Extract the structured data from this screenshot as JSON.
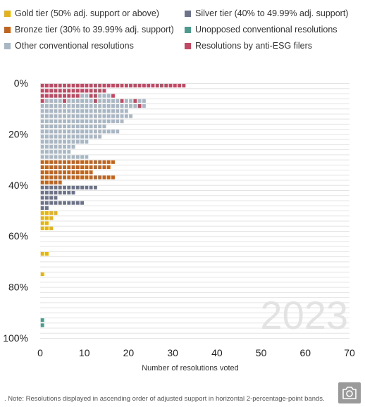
{
  "legend": [
    {
      "label": "Gold tier (50% adj. support or above)",
      "color": "#e3b21c",
      "icon": "square-swatch-icon"
    },
    {
      "label": "Silver tier (40% to 49.99% adj. support)",
      "color": "#6d7389",
      "icon": "square-swatch-icon"
    },
    {
      "label": "Bronze tier (30% to 39.99% adj. support)",
      "color": "#c0641f",
      "icon": "square-swatch-icon"
    },
    {
      "label": "Unopposed conventional resolutions",
      "color": "#4e9a8c",
      "icon": "square-swatch-icon"
    },
    {
      "label": "Other conventional resolutions",
      "color": "#a9b6c3",
      "icon": "square-swatch-icon"
    },
    {
      "label": "Resolutions by anti-ESG filers",
      "color": "#c04a64",
      "icon": "square-swatch-icon"
    }
  ],
  "chart_data": {
    "type": "scatter",
    "subtype": "unit-dot-stack",
    "watermark": "2023",
    "xlabel": "Number of resolutions voted",
    "ylabel": "",
    "xlim": [
      0,
      70
    ],
    "ylim": [
      0,
      100
    ],
    "y_inverted": true,
    "x_ticks": [
      "0",
      "10",
      "20",
      "30",
      "40",
      "50",
      "60",
      "70"
    ],
    "y_ticks": [
      {
        "value": 0,
        "label": "0%"
      },
      {
        "value": 20,
        "label": "20%"
      },
      {
        "value": 40,
        "label": "40%"
      },
      {
        "value": 60,
        "label": "60%"
      },
      {
        "value": 80,
        "label": "80%"
      },
      {
        "value": 100,
        "label": "100%"
      }
    ],
    "band_width_pct": 2,
    "grid": {
      "x": false,
      "y": true
    },
    "colors": {
      "gold": "#e3b21c",
      "silver": "#6d7389",
      "bronze": "#c0641f",
      "unopposed": "#4e9a8c",
      "other": "#a9b6c3",
      "anti": "#c04a64"
    },
    "bands": [
      {
        "y": 0,
        "segments": [
          {
            "cat": "anti",
            "count": 33
          }
        ]
      },
      {
        "y": 2,
        "segments": [
          {
            "cat": "anti",
            "count": 15
          }
        ]
      },
      {
        "y": 4,
        "segments": [
          {
            "cat": "anti",
            "count": 9
          },
          {
            "cat": "other",
            "count": 2
          },
          {
            "cat": "anti",
            "count": 2
          },
          {
            "cat": "other",
            "count": 3
          },
          {
            "cat": "anti",
            "count": 1
          }
        ]
      },
      {
        "y": 6,
        "segments": [
          {
            "cat": "anti",
            "count": 1
          },
          {
            "cat": "other",
            "count": 4
          },
          {
            "cat": "anti",
            "count": 1
          },
          {
            "cat": "other",
            "count": 6
          },
          {
            "cat": "anti",
            "count": 1
          },
          {
            "cat": "other",
            "count": 5
          },
          {
            "cat": "anti",
            "count": 1
          },
          {
            "cat": "other",
            "count": 2
          },
          {
            "cat": "anti",
            "count": 1
          },
          {
            "cat": "other",
            "count": 2
          }
        ]
      },
      {
        "y": 8,
        "segments": [
          {
            "cat": "other",
            "count": 22
          },
          {
            "cat": "anti",
            "count": 1
          },
          {
            "cat": "other",
            "count": 1
          }
        ]
      },
      {
        "y": 10,
        "segments": [
          {
            "cat": "other",
            "count": 20
          }
        ]
      },
      {
        "y": 12,
        "segments": [
          {
            "cat": "other",
            "count": 21
          }
        ]
      },
      {
        "y": 14,
        "segments": [
          {
            "cat": "other",
            "count": 19
          }
        ]
      },
      {
        "y": 16,
        "segments": [
          {
            "cat": "other",
            "count": 15
          }
        ]
      },
      {
        "y": 18,
        "segments": [
          {
            "cat": "other",
            "count": 18
          }
        ]
      },
      {
        "y": 20,
        "segments": [
          {
            "cat": "other",
            "count": 14
          }
        ]
      },
      {
        "y": 22,
        "segments": [
          {
            "cat": "other",
            "count": 11
          }
        ]
      },
      {
        "y": 24,
        "segments": [
          {
            "cat": "other",
            "count": 8
          }
        ]
      },
      {
        "y": 26,
        "segments": [
          {
            "cat": "other",
            "count": 7
          }
        ]
      },
      {
        "y": 28,
        "segments": [
          {
            "cat": "other",
            "count": 11
          }
        ]
      },
      {
        "y": 30,
        "segments": [
          {
            "cat": "bronze",
            "count": 17
          }
        ]
      },
      {
        "y": 32,
        "segments": [
          {
            "cat": "bronze",
            "count": 16
          }
        ]
      },
      {
        "y": 34,
        "segments": [
          {
            "cat": "bronze",
            "count": 12
          }
        ]
      },
      {
        "y": 36,
        "segments": [
          {
            "cat": "bronze",
            "count": 17
          }
        ]
      },
      {
        "y": 38,
        "segments": [
          {
            "cat": "bronze",
            "count": 5
          }
        ]
      },
      {
        "y": 40,
        "segments": [
          {
            "cat": "silver",
            "count": 13
          }
        ]
      },
      {
        "y": 42,
        "segments": [
          {
            "cat": "silver",
            "count": 8
          }
        ]
      },
      {
        "y": 44,
        "segments": [
          {
            "cat": "silver",
            "count": 4
          }
        ]
      },
      {
        "y": 46,
        "segments": [
          {
            "cat": "silver",
            "count": 10
          }
        ]
      },
      {
        "y": 48,
        "segments": [
          {
            "cat": "silver",
            "count": 2
          }
        ]
      },
      {
        "y": 50,
        "segments": [
          {
            "cat": "gold",
            "count": 4
          }
        ]
      },
      {
        "y": 52,
        "segments": [
          {
            "cat": "gold",
            "count": 3
          }
        ]
      },
      {
        "y": 54,
        "segments": [
          {
            "cat": "gold",
            "count": 2
          }
        ]
      },
      {
        "y": 56,
        "segments": [
          {
            "cat": "gold",
            "count": 3
          }
        ]
      },
      {
        "y": 66,
        "segments": [
          {
            "cat": "gold",
            "count": 2
          }
        ]
      },
      {
        "y": 74,
        "segments": [
          {
            "cat": "gold",
            "count": 1
          }
        ]
      },
      {
        "y": 92,
        "segments": [
          {
            "cat": "unopposed",
            "count": 1
          }
        ]
      },
      {
        "y": 94,
        "segments": [
          {
            "cat": "unopposed",
            "count": 1
          }
        ]
      }
    ]
  },
  "footnote": ". Note: Resolutions displayed in ascending order of adjusted support in horizontal 2-percentage-point bands.",
  "camera_button": {
    "icon": "camera-icon"
  }
}
